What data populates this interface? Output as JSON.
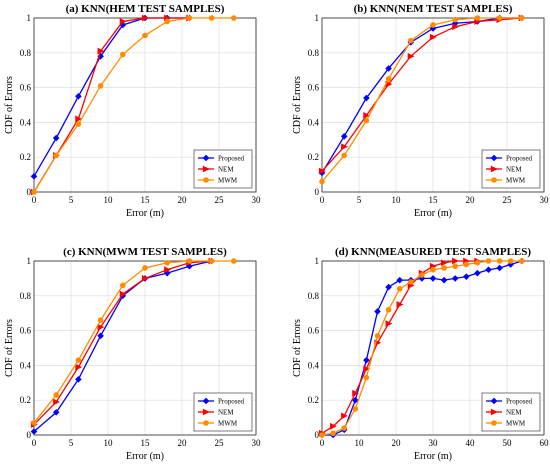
{
  "chart_data": [
    {
      "type": "line",
      "title": "(a) KNN(HEM TEST SAMPLES)",
      "xlabel": "Error (m)",
      "ylabel": "CDF of Errors",
      "xlim": [
        0,
        30
      ],
      "ylim": [
        0,
        1
      ],
      "xticks": [
        "0",
        "5",
        "10",
        "15",
        "20",
        "25",
        "30"
      ],
      "yticks": [
        "0",
        "0.2",
        "0.4",
        "0.6",
        "0.8",
        "1"
      ],
      "grid": true,
      "legend_position": "bottom-right",
      "series": [
        {
          "name": "Proposed",
          "color": "#0000ff",
          "marker": "diamond",
          "x": [
            0,
            3,
            6,
            9,
            12,
            15,
            18,
            21
          ],
          "y": [
            0.09,
            0.31,
            0.55,
            0.78,
            0.96,
            1.0,
            1.0,
            1.0
          ]
        },
        {
          "name": "NEM",
          "color": "#ff0000",
          "marker": "triangle",
          "x": [
            0,
            3,
            6,
            9,
            12,
            15,
            18,
            21
          ],
          "y": [
            0.0,
            0.21,
            0.42,
            0.81,
            0.98,
            1.0,
            1.0,
            1.0
          ]
        },
        {
          "name": "MWM",
          "color": "#ff8c00",
          "marker": "circle",
          "x": [
            0,
            3,
            6,
            9,
            12,
            15,
            18,
            21,
            24,
            27
          ],
          "y": [
            0.0,
            0.21,
            0.39,
            0.61,
            0.79,
            0.9,
            0.98,
            1.0,
            1.0,
            1.0
          ]
        }
      ]
    },
    {
      "type": "line",
      "title": "(b) KNN(NEM TEST SAMPLES)",
      "xlabel": "Error (m)",
      "ylabel": "CDF of Errors",
      "xlim": [
        0,
        30
      ],
      "ylim": [
        0,
        1
      ],
      "xticks": [
        "0",
        "5",
        "10",
        "15",
        "20",
        "25",
        "30"
      ],
      "yticks": [
        "0",
        "0.2",
        "0.4",
        "0.6",
        "0.8",
        "1"
      ],
      "grid": true,
      "legend_position": "bottom-right",
      "series": [
        {
          "name": "Proposed",
          "color": "#0000ff",
          "marker": "diamond",
          "x": [
            0,
            3,
            6,
            9,
            12,
            15,
            18,
            21,
            24,
            27
          ],
          "y": [
            0.11,
            0.32,
            0.54,
            0.71,
            0.86,
            0.94,
            0.97,
            0.98,
            1.0,
            1.0
          ]
        },
        {
          "name": "NEM",
          "color": "#ff0000",
          "marker": "triangle",
          "x": [
            0,
            3,
            6,
            9,
            12,
            15,
            18,
            21,
            24,
            27
          ],
          "y": [
            0.12,
            0.26,
            0.44,
            0.62,
            0.78,
            0.89,
            0.95,
            0.98,
            0.99,
            1.0
          ]
        },
        {
          "name": "MWM",
          "color": "#ff8c00",
          "marker": "circle",
          "x": [
            0,
            3,
            6,
            9,
            12,
            15,
            18,
            21,
            24,
            27
          ],
          "y": [
            0.06,
            0.21,
            0.41,
            0.65,
            0.87,
            0.96,
            0.99,
            1.0,
            1.0,
            1.0
          ]
        }
      ]
    },
    {
      "type": "line",
      "title": "(c) KNN(MWM TEST SAMPLES)",
      "xlabel": "Error (m)",
      "ylabel": "CDF of Errors",
      "xlim": [
        0,
        30
      ],
      "ylim": [
        0,
        1
      ],
      "xticks": [
        "0",
        "5",
        "10",
        "15",
        "20",
        "25",
        "30"
      ],
      "yticks": [
        "0",
        "0.2",
        "0.4",
        "0.6",
        "0.8",
        "1"
      ],
      "grid": true,
      "legend_position": "bottom-right",
      "series": [
        {
          "name": "Proposed",
          "color": "#0000ff",
          "marker": "diamond",
          "x": [
            0,
            3,
            6,
            9,
            12,
            15,
            18,
            21,
            24
          ],
          "y": [
            0.02,
            0.13,
            0.32,
            0.57,
            0.8,
            0.9,
            0.93,
            0.97,
            1.0
          ]
        },
        {
          "name": "NEM",
          "color": "#ff0000",
          "marker": "triangle",
          "x": [
            0,
            3,
            6,
            9,
            12,
            15,
            18,
            21,
            24
          ],
          "y": [
            0.06,
            0.19,
            0.39,
            0.62,
            0.81,
            0.9,
            0.95,
            0.99,
            1.0
          ]
        },
        {
          "name": "MWM",
          "color": "#ff8c00",
          "marker": "circle",
          "x": [
            0,
            3,
            6,
            9,
            12,
            15,
            18,
            21,
            24,
            27
          ],
          "y": [
            0.07,
            0.23,
            0.43,
            0.66,
            0.86,
            0.96,
            0.99,
            1.0,
            1.0,
            1.0
          ]
        }
      ]
    },
    {
      "type": "line",
      "title": "(d) KNN(MEASURED TEST SAMPLES)",
      "xlabel": "Error (m)",
      "ylabel": "CDF of Errors",
      "xlim": [
        0,
        60
      ],
      "ylim": [
        0,
        1
      ],
      "xticks": [
        "0",
        "10",
        "20",
        "30",
        "40",
        "50",
        "60"
      ],
      "yticks": [
        "0",
        "0.2",
        "0.4",
        "0.6",
        "0.8",
        "1"
      ],
      "grid": true,
      "legend_position": "bottom-right",
      "series": [
        {
          "name": "Proposed",
          "color": "#0000ff",
          "marker": "diamond",
          "x": [
            0,
            3,
            6,
            9,
            12,
            15,
            18,
            21,
            24,
            27,
            30,
            33,
            36,
            39,
            42,
            45,
            48,
            51,
            54
          ],
          "y": [
            0.0,
            0.0,
            0.03,
            0.2,
            0.43,
            0.71,
            0.85,
            0.89,
            0.89,
            0.9,
            0.9,
            0.89,
            0.9,
            0.91,
            0.93,
            0.95,
            0.96,
            0.98,
            1.0
          ]
        },
        {
          "name": "NEM",
          "color": "#ff0000",
          "marker": "triangle",
          "x": [
            0,
            3,
            6,
            9,
            12,
            15,
            18,
            21,
            24,
            27,
            30,
            33,
            36,
            39,
            42
          ],
          "y": [
            0.01,
            0.05,
            0.11,
            0.24,
            0.38,
            0.53,
            0.64,
            0.75,
            0.86,
            0.93,
            0.97,
            0.99,
            1.0,
            1.0,
            1.0
          ]
        },
        {
          "name": "MWM",
          "color": "#ff8c00",
          "marker": "circle",
          "x": [
            0,
            3,
            6,
            9,
            12,
            15,
            18,
            21,
            24,
            27,
            30,
            33,
            36,
            39,
            42,
            45,
            48,
            51,
            54
          ],
          "y": [
            0.0,
            0.01,
            0.04,
            0.15,
            0.33,
            0.57,
            0.72,
            0.84,
            0.88,
            0.92,
            0.95,
            0.96,
            0.97,
            0.98,
            0.99,
            1.0,
            1.0,
            1.0,
            1.0
          ]
        }
      ]
    }
  ]
}
